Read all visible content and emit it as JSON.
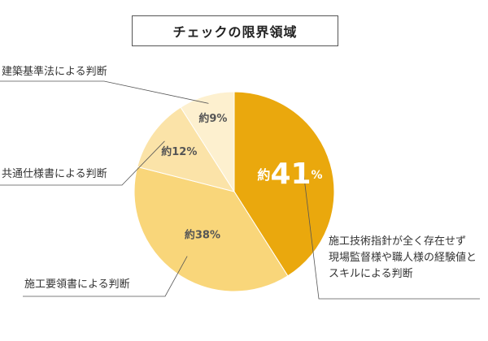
{
  "title": "チェックの限界領域",
  "chart_data": {
    "type": "pie",
    "title": "チェックの限界領域",
    "start_angle_deg": 0,
    "direction": "clockwise",
    "slices": [
      {
        "label_lines": [
          "施工技術指針が全く存在せず",
          "現場監督様や職人様の経験値と",
          "スキルによる判断"
        ],
        "value": 41,
        "prefix": "約",
        "display": "41",
        "unit": "%",
        "color": "#EAA80D",
        "text_color": "#ffffff"
      },
      {
        "label_lines": [
          "施工要領書による判断"
        ],
        "value": 38,
        "prefix": "約",
        "display": "38%",
        "unit": "",
        "color": "#F9D67A",
        "text_color": "#555555"
      },
      {
        "label_lines": [
          "共通仕様書による判断"
        ],
        "value": 12,
        "prefix": "約",
        "display": "12%",
        "unit": "",
        "color": "#FBE3A8",
        "text_color": "#555555"
      },
      {
        "label_lines": [
          "建築基準法による判断"
        ],
        "value": 9,
        "prefix": "約",
        "display": "9%",
        "unit": "",
        "color": "#FDF0CF",
        "text_color": "#555555"
      }
    ]
  }
}
